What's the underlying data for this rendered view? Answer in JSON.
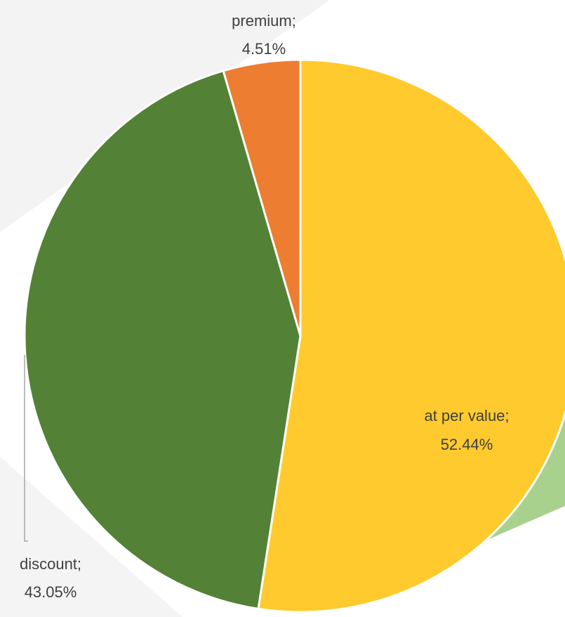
{
  "chart_data": {
    "type": "pie",
    "title": "",
    "start_angle_deg": 0,
    "direction": "clockwise",
    "slices": [
      {
        "name": "at per value",
        "label_line1": "at per value;",
        "label_line2": "52.44%",
        "value": 52.44,
        "color": "#FFCA2E"
      },
      {
        "name": "discount",
        "label_line1": "discount;",
        "label_line2": "43.05%",
        "value": 43.05,
        "color": "#538135"
      },
      {
        "name": "premium",
        "label_line1": "premium;",
        "label_line2": "4.51%",
        "value": 4.51,
        "color": "#ED7D31"
      }
    ],
    "background_accent_colors": [
      "#F2F2F2",
      "#A9D18E"
    ]
  }
}
